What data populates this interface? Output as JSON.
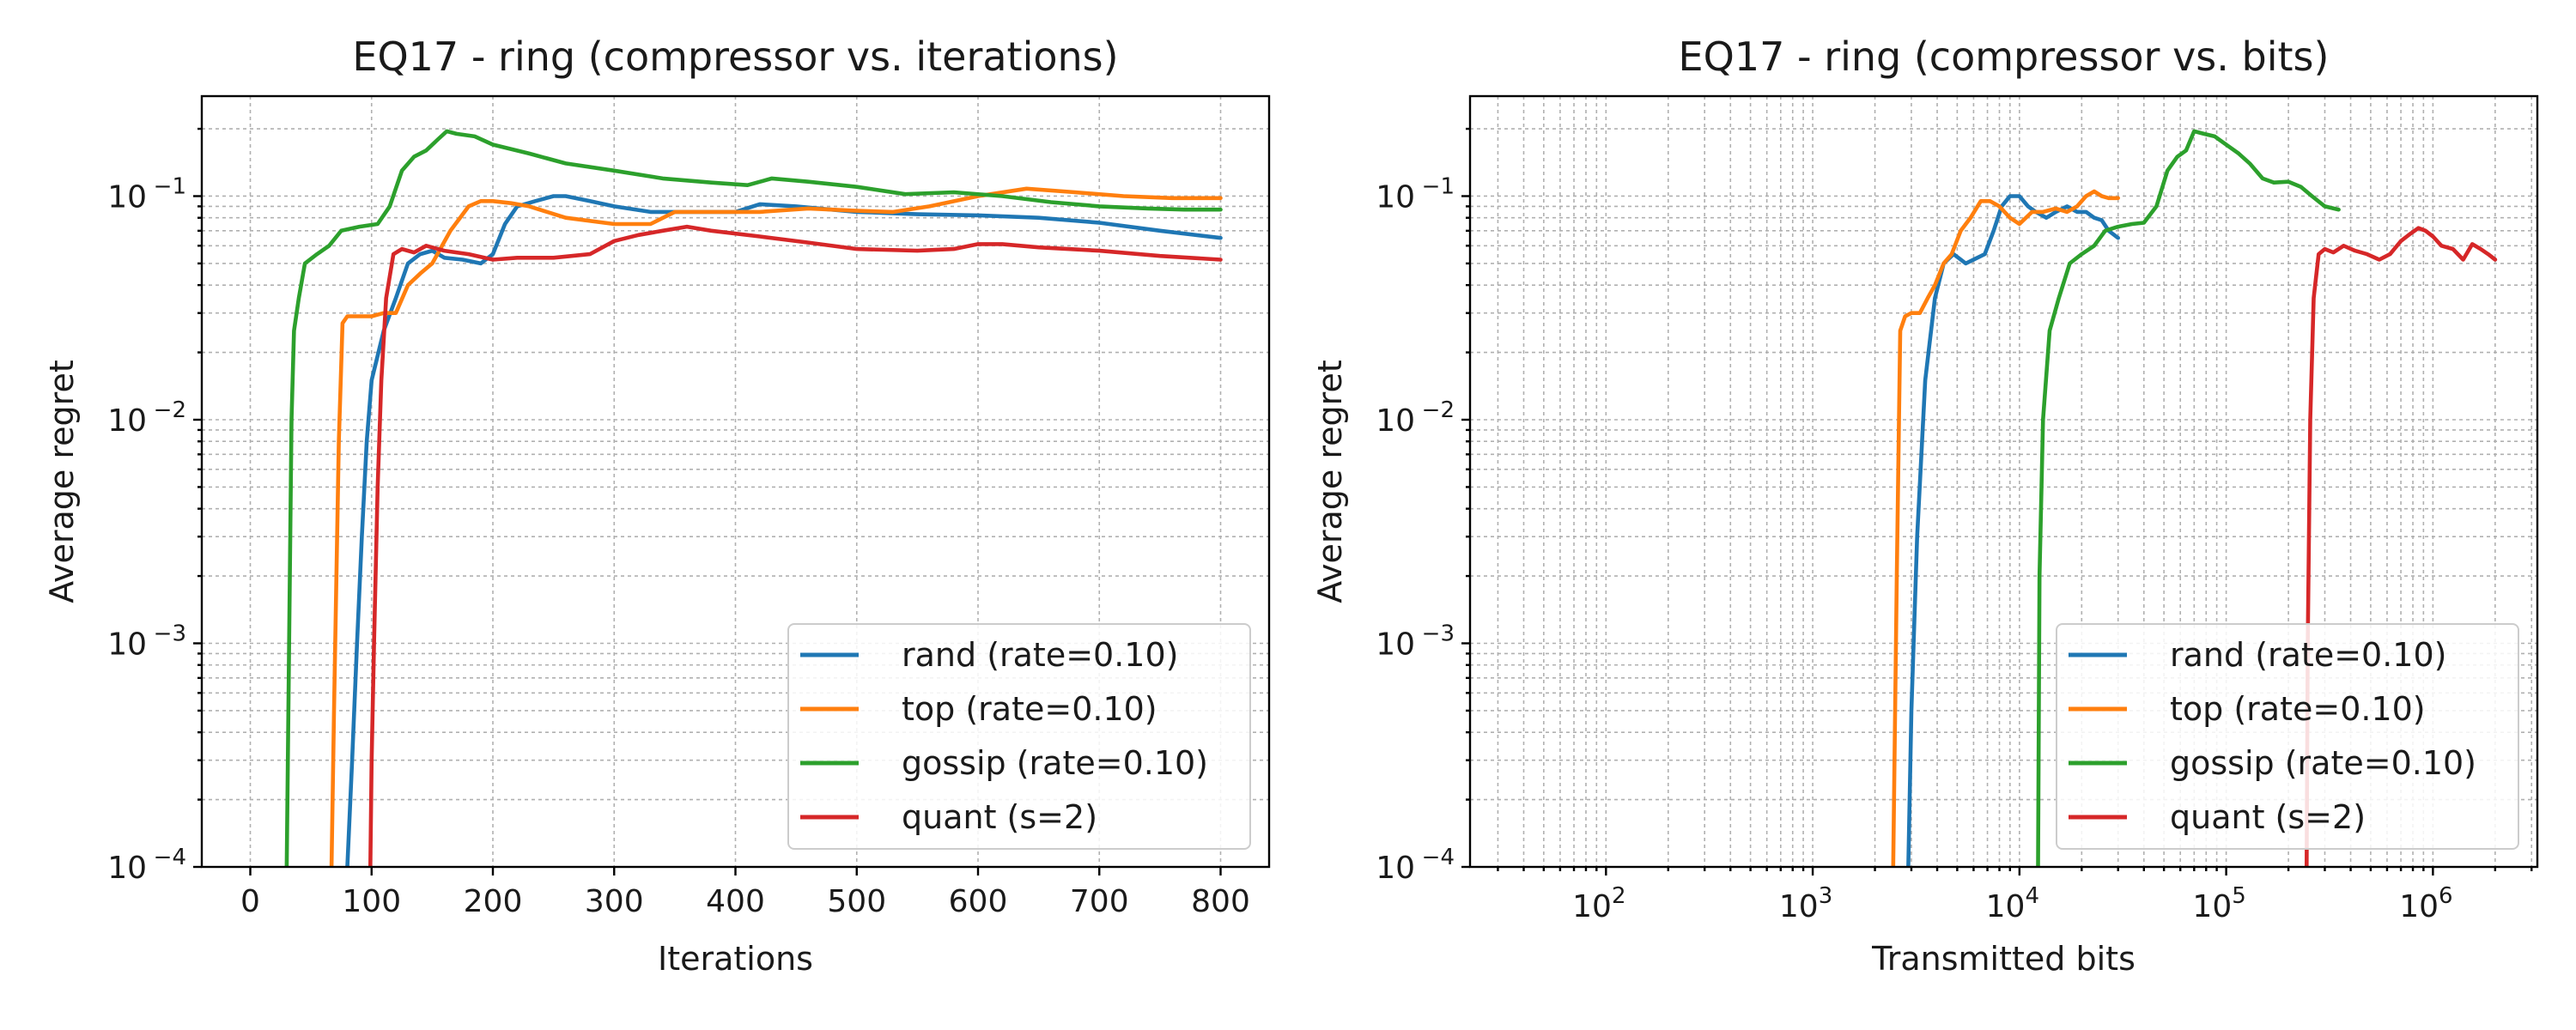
{
  "chart_data": [
    {
      "type": "line",
      "title": "EQ17 - ring (compressor vs. iterations)",
      "xlabel": "Iterations",
      "ylabel": "Average regret",
      "xscale": "linear",
      "yscale": "log",
      "xlim": [
        -40,
        840
      ],
      "ylim": [
        0.0001,
        0.28
      ],
      "xticks": [
        0,
        100,
        200,
        300,
        400,
        500,
        600,
        700,
        800
      ],
      "yticks": [
        {
          "base": "10",
          "exp": "−4",
          "value": 0.0001
        },
        {
          "base": "10",
          "exp": "−3",
          "value": 0.001
        },
        {
          "base": "10",
          "exp": "−2",
          "value": 0.01
        },
        {
          "base": "10",
          "exp": "−1",
          "value": 0.1
        }
      ],
      "grid": true,
      "legend_position": "lower right",
      "series": [
        {
          "name": "rand (rate=0.10)",
          "color": "#1f77b4",
          "x": [
            80,
            84,
            88,
            92,
            96,
            100,
            110,
            120,
            130,
            140,
            150,
            160,
            175,
            190,
            200,
            210,
            220,
            235,
            250,
            260,
            280,
            300,
            330,
            360,
            400,
            420,
            450,
            500,
            550,
            600,
            650,
            700,
            750,
            800
          ],
          "y": [
            0.0001,
            0.0003,
            0.001,
            0.003,
            0.008,
            0.015,
            0.025,
            0.035,
            0.05,
            0.055,
            0.057,
            0.053,
            0.052,
            0.05,
            0.055,
            0.075,
            0.09,
            0.095,
            0.1,
            0.1,
            0.095,
            0.09,
            0.085,
            0.085,
            0.085,
            0.092,
            0.09,
            0.085,
            0.083,
            0.082,
            0.08,
            0.076,
            0.07,
            0.065
          ]
        },
        {
          "name": "top (rate=0.10)",
          "color": "#ff7f0e",
          "x": [
            67,
            69,
            71,
            73,
            76,
            80,
            90,
            100,
            110,
            120,
            130,
            140,
            150,
            165,
            180,
            190,
            200,
            215,
            230,
            260,
            300,
            330,
            350,
            380,
            420,
            460,
            500,
            530,
            560,
            600,
            640,
            680,
            720,
            760,
            800
          ],
          "y": [
            0.0001,
            0.0005,
            0.002,
            0.008,
            0.027,
            0.029,
            0.029,
            0.029,
            0.03,
            0.03,
            0.04,
            0.045,
            0.05,
            0.07,
            0.09,
            0.095,
            0.095,
            0.093,
            0.09,
            0.08,
            0.075,
            0.075,
            0.085,
            0.085,
            0.085,
            0.088,
            0.086,
            0.085,
            0.09,
            0.1,
            0.108,
            0.104,
            0.1,
            0.098,
            0.098
          ]
        },
        {
          "name": "gossip (rate=0.10)",
          "color": "#2ca02c",
          "x": [
            30,
            32,
            34,
            36,
            40,
            45,
            55,
            65,
            75,
            90,
            105,
            115,
            125,
            135,
            145,
            155,
            162,
            170,
            185,
            200,
            230,
            260,
            300,
            340,
            380,
            410,
            430,
            460,
            500,
            540,
            580,
            620,
            660,
            700,
            740,
            770,
            800
          ],
          "y": [
            0.0001,
            0.001,
            0.01,
            0.025,
            0.035,
            0.05,
            0.055,
            0.06,
            0.07,
            0.073,
            0.075,
            0.09,
            0.13,
            0.15,
            0.16,
            0.18,
            0.195,
            0.19,
            0.185,
            0.17,
            0.155,
            0.14,
            0.13,
            0.12,
            0.115,
            0.112,
            0.12,
            0.116,
            0.11,
            0.102,
            0.104,
            0.1,
            0.094,
            0.09,
            0.088,
            0.087,
            0.087
          ]
        },
        {
          "name": "quant (s=2)",
          "color": "#d62728",
          "x": [
            99,
            100,
            102,
            105,
            108,
            112,
            118,
            125,
            135,
            145,
            160,
            180,
            200,
            220,
            250,
            280,
            300,
            320,
            340,
            360,
            380,
            420,
            460,
            500,
            550,
            580,
            600,
            620,
            650,
            700,
            750,
            800
          ],
          "y": [
            0.0001,
            0.0003,
            0.001,
            0.005,
            0.015,
            0.035,
            0.055,
            0.058,
            0.056,
            0.06,
            0.057,
            0.055,
            0.052,
            0.053,
            0.053,
            0.055,
            0.063,
            0.067,
            0.07,
            0.073,
            0.07,
            0.066,
            0.062,
            0.058,
            0.057,
            0.058,
            0.061,
            0.061,
            0.059,
            0.057,
            0.054,
            0.052
          ]
        }
      ]
    },
    {
      "type": "line",
      "title": "EQ17 - ring (compressor vs. bits)",
      "xlabel": "Transmitted bits",
      "ylabel": "Average regret",
      "xscale": "log",
      "yscale": "log",
      "xlim": [
        22,
        3200000
      ],
      "ylim": [
        0.0001,
        0.28
      ],
      "xticks": [
        {
          "base": "10",
          "exp": "2",
          "value": 100
        },
        {
          "base": "10",
          "exp": "3",
          "value": 1000
        },
        {
          "base": "10",
          "exp": "4",
          "value": 10000
        },
        {
          "base": "10",
          "exp": "5",
          "value": 100000
        },
        {
          "base": "10",
          "exp": "6",
          "value": 1000000
        }
      ],
      "yticks": [
        {
          "base": "10",
          "exp": "−4",
          "value": 0.0001
        },
        {
          "base": "10",
          "exp": "−3",
          "value": 0.001
        },
        {
          "base": "10",
          "exp": "−2",
          "value": 0.01
        },
        {
          "base": "10",
          "exp": "−1",
          "value": 0.1
        }
      ],
      "grid": true,
      "legend_position": "lower right",
      "series": [
        {
          "name": "rand (rate=0.10)",
          "color": "#1f77b4",
          "x": [
            2900,
            3000,
            3200,
            3500,
            3900,
            4300,
            4800,
            5500,
            6000,
            6800,
            7500,
            8200,
            9000,
            10000,
            11000,
            12000,
            13500,
            15000,
            17000,
            19000,
            21000,
            23000,
            25000,
            27000,
            30000
          ],
          "y": [
            0.0001,
            0.0005,
            0.003,
            0.015,
            0.035,
            0.05,
            0.055,
            0.05,
            0.052,
            0.055,
            0.07,
            0.09,
            0.1,
            0.1,
            0.09,
            0.085,
            0.08,
            0.085,
            0.09,
            0.085,
            0.085,
            0.08,
            0.078,
            0.07,
            0.065
          ]
        },
        {
          "name": "top (rate=0.10)",
          "color": "#ff7f0e",
          "x": [
            2450,
            2550,
            2650,
            2800,
            3000,
            3300,
            3600,
            3900,
            4300,
            4700,
            5200,
            5800,
            6500,
            7200,
            8000,
            9000,
            10000,
            11500,
            13000,
            15000,
            17000,
            19000,
            21000,
            23000,
            25000,
            27000,
            30000
          ],
          "y": [
            0.0001,
            0.002,
            0.025,
            0.029,
            0.03,
            0.03,
            0.035,
            0.04,
            0.05,
            0.055,
            0.07,
            0.08,
            0.095,
            0.095,
            0.09,
            0.08,
            0.075,
            0.085,
            0.085,
            0.088,
            0.085,
            0.09,
            0.1,
            0.105,
            0.1,
            0.098,
            0.098
          ]
        },
        {
          "name": "gossip (rate=0.10)",
          "color": "#2ca02c",
          "x": [
            12300,
            12500,
            13000,
            14000,
            15500,
            17500,
            20000,
            23000,
            26000,
            30000,
            35000,
            40000,
            46000,
            52000,
            58000,
            64000,
            70000,
            78000,
            88000,
            100000,
            115000,
            130000,
            150000,
            170000,
            200000,
            230000,
            260000,
            300000,
            350000
          ],
          "y": [
            0.0001,
            0.002,
            0.01,
            0.025,
            0.035,
            0.05,
            0.055,
            0.06,
            0.07,
            0.073,
            0.075,
            0.076,
            0.09,
            0.13,
            0.15,
            0.16,
            0.195,
            0.19,
            0.185,
            0.17,
            0.155,
            0.14,
            0.12,
            0.115,
            0.116,
            0.11,
            0.1,
            0.09,
            0.087
          ]
        },
        {
          "name": "quant (s=2)",
          "color": "#d62728",
          "x": [
            245000,
            248000,
            255000,
            265000,
            280000,
            300000,
            330000,
            370000,
            420000,
            480000,
            550000,
            620000,
            700000,
            780000,
            850000,
            920000,
            1000000,
            1100000,
            1250000,
            1400000,
            1550000,
            1700000,
            1850000,
            2000000
          ],
          "y": [
            0.0001,
            0.001,
            0.01,
            0.035,
            0.055,
            0.058,
            0.056,
            0.06,
            0.057,
            0.055,
            0.052,
            0.055,
            0.063,
            0.068,
            0.072,
            0.07,
            0.066,
            0.06,
            0.058,
            0.052,
            0.061,
            0.058,
            0.055,
            0.052
          ]
        }
      ]
    }
  ]
}
